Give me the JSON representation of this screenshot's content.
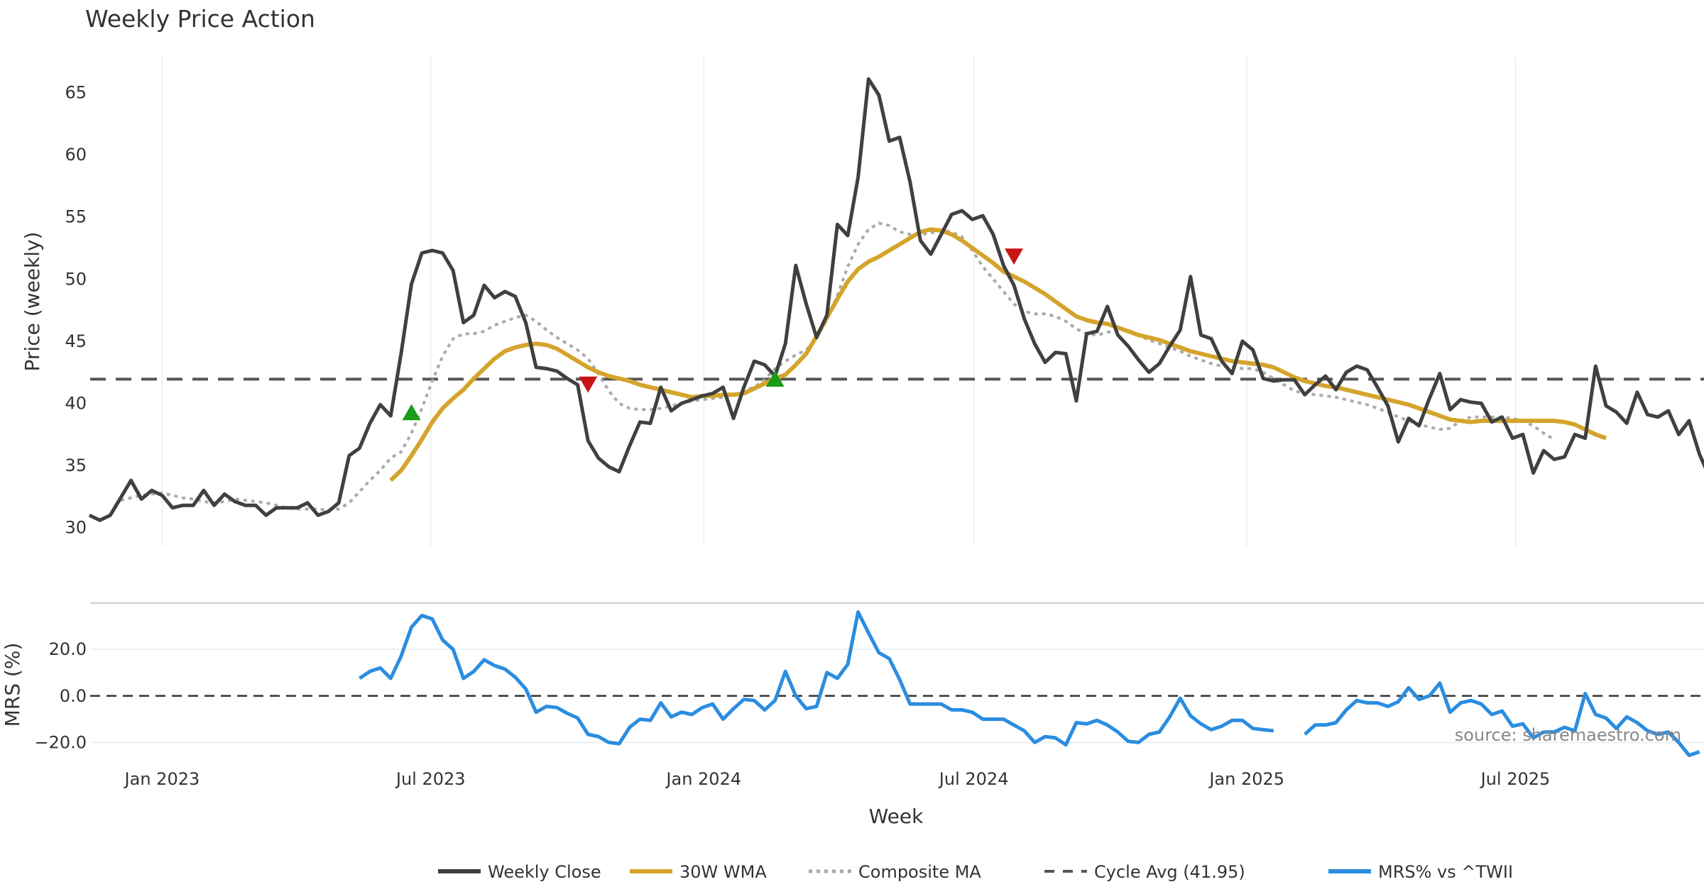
{
  "chart_data": {
    "type": "line",
    "title": "Weekly Price Action",
    "xlabel": "Week",
    "x_start": "2022-11-13",
    "x_interval": "weekly",
    "x_ticks": [
      "Jan 2023",
      "Jul 2023",
      "Jan 2024",
      "Jul 2024",
      "Jan 2025",
      "Jul 2025"
    ],
    "x_tick_dates": [
      "2023-01-01",
      "2023-07-01",
      "2024-01-01",
      "2024-07-01",
      "2025-01-01",
      "2025-07-01"
    ],
    "price_panel": {
      "ylabel": "Price (weekly)",
      "ylim": [
        28.5,
        68
      ],
      "yticks": [
        "30",
        "35",
        "40",
        "45",
        "50",
        "55",
        "60",
        "65"
      ],
      "grid": "vertical",
      "series": [
        {
          "name": "Weekly Close",
          "color": "#404040",
          "style": "solid",
          "start_index": 0,
          "values": [
            31.0,
            30.6,
            31.0,
            32.4,
            33.8,
            32.3,
            33.0,
            32.6,
            31.6,
            31.8,
            31.8,
            33.0,
            31.8,
            32.7,
            32.1,
            31.8,
            31.8,
            31.0,
            31.6,
            31.6,
            31.6,
            32.0,
            31.0,
            31.3,
            32.0,
            35.8,
            36.4,
            38.4,
            39.9,
            39.0,
            44.0,
            49.6,
            52.1,
            52.3,
            52.1,
            50.7,
            46.5,
            47.1,
            49.5,
            48.5,
            49.0,
            48.6,
            46.5,
            42.9,
            42.8,
            42.6,
            42.0,
            41.5,
            37.0,
            35.6,
            34.9,
            34.5,
            36.6,
            38.5,
            38.4,
            41.3,
            39.4,
            40.0,
            40.3,
            40.6,
            40.8,
            41.3,
            38.8,
            41.3,
            43.4,
            43.1,
            42.2,
            44.8,
            51.1,
            48.0,
            45.3,
            47.1,
            54.4,
            53.5,
            58.2,
            66.1,
            64.8,
            61.1,
            61.4,
            57.8,
            53.1,
            52.0,
            53.6,
            55.2,
            55.5,
            54.8,
            55.1,
            53.6,
            51.1,
            49.5,
            46.8,
            44.8,
            43.3,
            44.1,
            44.0,
            40.2,
            45.6,
            45.8,
            47.8,
            45.5,
            44.6,
            43.5,
            42.5,
            43.2,
            44.6,
            45.9,
            50.2,
            45.5,
            45.2,
            43.4,
            42.4,
            45.0,
            44.3,
            42.0,
            41.8,
            41.9,
            41.9,
            40.7,
            41.5,
            42.2,
            41.1,
            42.5,
            43.0,
            42.7,
            41.3,
            39.8,
            36.9,
            38.8,
            38.2,
            40.4,
            42.4,
            39.5,
            40.3,
            40.1,
            40.0,
            38.5,
            38.9,
            37.2,
            37.5,
            34.4,
            36.2,
            35.5,
            35.7,
            37.5,
            37.2,
            43.0,
            39.8,
            39.3,
            38.4,
            40.9,
            39.1,
            38.9,
            39.4,
            37.5,
            38.6,
            35.9,
            34.0,
            33.8
          ]
        },
        {
          "name": "30W WMA",
          "color": "#d4a42c",
          "style": "solid",
          "start_index": 29,
          "values": [
            33.8,
            34.6,
            35.8,
            37.1,
            38.5,
            39.6,
            40.4,
            41.1,
            42.0,
            42.8,
            43.6,
            44.2,
            44.5,
            44.7,
            44.8,
            44.7,
            44.4,
            43.9,
            43.4,
            42.9,
            42.5,
            42.2,
            42.0,
            41.8,
            41.5,
            41.3,
            41.1,
            40.9,
            40.7,
            40.5,
            40.6,
            40.6,
            40.7,
            40.7,
            40.8,
            41.2,
            41.6,
            42.0,
            42.3,
            43.1,
            44.0,
            45.4,
            46.9,
            48.4,
            49.8,
            50.8,
            51.4,
            51.8,
            52.3,
            52.8,
            53.3,
            53.8,
            54.0,
            53.9,
            53.6,
            53.1,
            52.5,
            51.9,
            51.3,
            50.6,
            50.2,
            49.8,
            49.3,
            48.8,
            48.2,
            47.6,
            47.0,
            46.7,
            46.5,
            46.4,
            46.1,
            45.8,
            45.5,
            45.3,
            45.1,
            44.8,
            44.5,
            44.2,
            44.0,
            43.8,
            43.6,
            43.4,
            43.3,
            43.2,
            43.1,
            42.9,
            42.5,
            42.1,
            41.8,
            41.6,
            41.4,
            41.3,
            41.1,
            40.9,
            40.7,
            40.5,
            40.3,
            40.1,
            39.9,
            39.6,
            39.3,
            39.0,
            38.7,
            38.6,
            38.5,
            38.6,
            38.6,
            38.6,
            38.6,
            38.6,
            38.6,
            38.6,
            38.6,
            38.5,
            38.3,
            37.9,
            37.5,
            37.2
          ]
        },
        {
          "name": "Composite MA",
          "color": "#aaaaaa",
          "style": "dotted",
          "start_index": 3,
          "values": [
            32.2,
            32.4,
            32.6,
            32.7,
            32.8,
            32.6,
            32.4,
            32.3,
            32.1,
            32.0,
            32.1,
            32.3,
            32.2,
            32.1,
            32.0,
            31.8,
            31.6,
            31.5,
            31.5,
            31.5,
            31.4,
            31.5,
            32.0,
            32.9,
            33.8,
            34.6,
            35.6,
            36.1,
            37.6,
            39.6,
            41.8,
            43.8,
            45.2,
            45.6,
            45.6,
            45.8,
            46.3,
            46.6,
            46.9,
            47.1,
            46.6,
            45.9,
            45.3,
            44.8,
            44.3,
            43.6,
            42.4,
            41.0,
            40.0,
            39.6,
            39.5,
            39.5,
            39.6,
            39.8,
            40.0,
            40.2,
            40.3,
            40.4,
            40.5,
            40.7,
            41.0,
            41.3,
            41.9,
            42.8,
            43.4,
            43.9,
            44.3,
            45.3,
            46.7,
            48.7,
            51.0,
            52.8,
            54.0,
            54.5,
            54.3,
            53.8,
            53.6,
            53.6,
            53.7,
            53.9,
            53.8,
            53.4,
            52.3,
            51.0,
            50.0,
            49.0,
            48.0,
            47.4,
            47.2,
            47.2,
            47.0,
            46.6,
            46.0,
            45.6,
            45.5,
            45.7,
            46.0,
            45.9,
            45.5,
            45.1,
            44.8,
            44.5,
            44.2,
            43.8,
            43.5,
            43.2,
            43.0,
            42.9,
            42.8,
            42.8,
            42.5,
            42.0,
            41.5,
            41.0,
            40.8,
            40.7,
            40.6,
            40.5,
            40.3,
            40.1,
            39.9,
            39.6,
            39.3,
            38.9,
            38.6,
            38.3,
            38.1,
            37.9,
            38.0,
            38.6,
            38.9,
            38.9,
            38.9,
            38.9,
            38.8,
            38.6,
            38.2,
            37.6,
            37.1
          ]
        },
        {
          "name": "Cycle Avg (41.95)",
          "color": "#555555",
          "style": "dashed",
          "value": 41.95
        }
      ],
      "markers": [
        {
          "type": "buy",
          "symbol": "triangle-up",
          "color": "#1a9c1a",
          "index": 31,
          "value": 39.2
        },
        {
          "type": "sell",
          "symbol": "triangle-down",
          "color": "#c81414",
          "index": 48,
          "value": 41.6
        },
        {
          "type": "buy",
          "symbol": "triangle-up",
          "color": "#1a9c1a",
          "index": 66,
          "value": 41.9
        },
        {
          "type": "sell",
          "symbol": "triangle-down",
          "color": "#c81414",
          "index": 89,
          "value": 51.9
        }
      ]
    },
    "mrs_panel": {
      "ylabel": "MRS (%)",
      "ylim": [
        -29,
        38
      ],
      "yticks": [
        "20.0",
        "0.0",
        "−20.0"
      ],
      "ytick_values": [
        20,
        0,
        -20
      ],
      "zero_line": true,
      "series": [
        {
          "name": "MRS% vs ^TWII",
          "color": "#2b8de0",
          "style": "solid",
          "start_index": 26,
          "values": [
            7.5,
            10.5,
            12.0,
            7.5,
            17.0,
            29.5,
            34.5,
            33.0,
            24.0,
            20.0,
            7.5,
            10.5,
            15.5,
            13.0,
            11.5,
            8.0,
            3.0,
            -7.0,
            -4.5,
            -5.0,
            -7.5,
            -9.5,
            -16.5,
            -17.5,
            -20.0,
            -20.5,
            -13.5,
            -10.0,
            -10.5,
            -3.0,
            -9.0,
            -7.0,
            -8.0,
            -5.0,
            -3.5,
            -10.0,
            -5.5,
            -1.5,
            -2.0,
            -6.0,
            -2.0,
            10.5,
            0.0,
            -5.5,
            -4.5,
            10.0,
            7.5,
            13.5,
            36.0,
            27.0,
            18.5,
            16.0,
            7.0,
            -3.5,
            -3.5,
            -3.5,
            -3.5,
            -6.0,
            -6.0,
            -7.0,
            -10.0,
            -10.0,
            -10.0,
            -12.5,
            -15.0,
            -20.0,
            -17.5,
            -18.0,
            -21.0,
            -11.5,
            -12.0,
            -10.5,
            -12.5,
            -15.5,
            -19.5,
            -20.0,
            -16.5,
            -15.5,
            -9.0,
            -1.0,
            -8.5,
            -12.0,
            -14.5,
            -13.0,
            -10.5,
            -10.5,
            -14.0,
            -14.5,
            -15.0,
            null,
            null,
            -16.5,
            -12.5,
            -12.5,
            -11.5,
            -6.0,
            -2.0,
            -3.0,
            -3.0,
            -4.5,
            -2.5,
            3.5,
            -1.5,
            0.0,
            5.5,
            -7.0,
            -3.0,
            -2.0,
            -3.5,
            -8.0,
            -6.5,
            -13.0,
            -12.0,
            -18.0,
            -15.5,
            -15.5,
            -13.5,
            -15.0,
            1.0,
            -8.0,
            -9.5,
            -14.0,
            -9.0,
            -11.5,
            -15.0,
            -16.5,
            -15.5,
            -20.0,
            -25.5,
            -24.0
          ]
        }
      ]
    },
    "legend": {
      "placement": "bottom-center",
      "entries": [
        "Weekly Close",
        "30W WMA",
        "Composite MA",
        "Cycle Avg (41.95)",
        "MRS% vs ^TWII"
      ]
    },
    "annotation": "source: sharemaestro.com"
  }
}
